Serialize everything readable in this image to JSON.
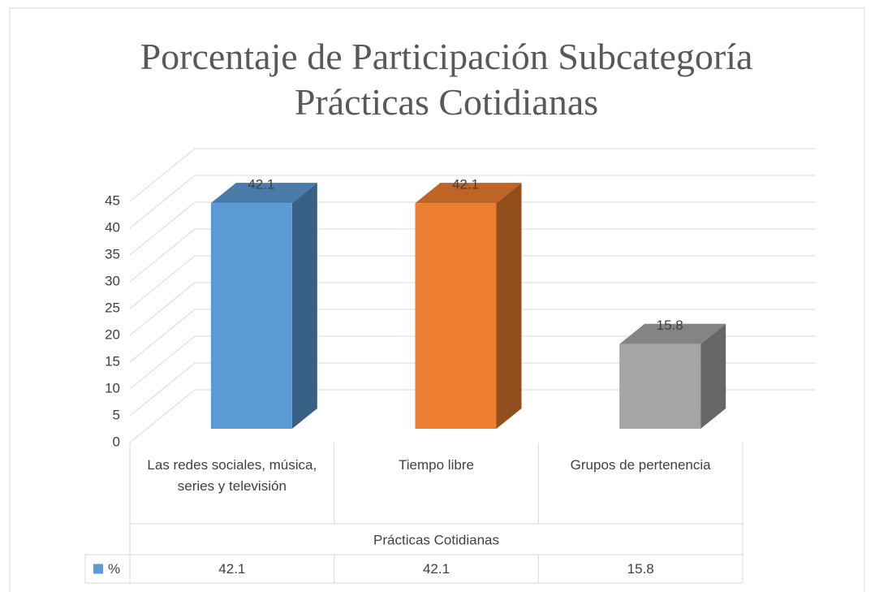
{
  "chart_data": {
    "type": "bar3d",
    "title": "Porcentaje de Participación Subcategoría Prácticas Cotidianas",
    "categories": [
      "Las redes sociales, música, series y televisión",
      "Tiempo libre",
      "Grupos de pertenencia"
    ],
    "group_label": "Prácticas Cotidianas",
    "series": [
      {
        "name": "%",
        "values": [
          42.1,
          42.1,
          15.8
        ],
        "colors": [
          "#5b9bd5",
          "#ed7d31",
          "#a5a5a5"
        ]
      }
    ],
    "ylim": [
      0,
      45
    ],
    "yticks": [
      0,
      5,
      10,
      15,
      20,
      25,
      30,
      35,
      40,
      45
    ],
    "grid": true,
    "data_table": true
  }
}
